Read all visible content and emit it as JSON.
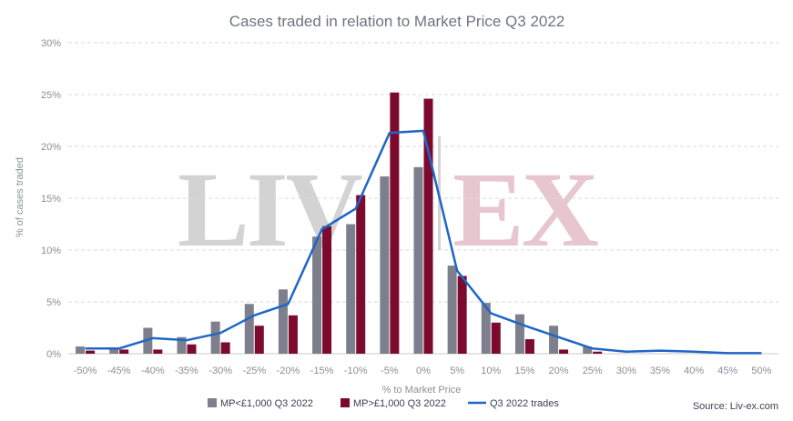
{
  "chart_data": {
    "type": "bar",
    "title": "Cases traded in relation to Market Price Q3 2022",
    "xlabel": "% to Market Price",
    "ylabel": "% of cases traded",
    "categories": [
      "-50%",
      "-45%",
      "-40%",
      "-35%",
      "-30%",
      "-25%",
      "-20%",
      "-15%",
      "-10%",
      "-5%",
      "0%",
      "5%",
      "10%",
      "15%",
      "20%",
      "25%",
      "30%",
      "35%",
      "40%",
      "45%",
      "50%"
    ],
    "y_ticks": [
      "0%",
      "5%",
      "10%",
      "15%",
      "20%",
      "25%",
      "30%"
    ],
    "ylim": [
      0,
      30
    ],
    "grid": true,
    "legend_position": "bottom",
    "series": [
      {
        "name": "MP<£1,000 Q3 2022",
        "kind": "bar",
        "color": "#7d7f8c",
        "values": [
          0.7,
          0.5,
          2.5,
          1.6,
          3.1,
          4.8,
          6.2,
          11.3,
          12.5,
          17.1,
          18.0,
          8.5,
          4.9,
          3.8,
          2.7,
          0.7,
          0.0,
          0.0,
          0.0,
          0.0,
          0.0
        ]
      },
      {
        "name": "MP>£1,000 Q3 2022",
        "kind": "bar",
        "color": "#7b0a2e",
        "values": [
          0.3,
          0.4,
          0.4,
          0.9,
          1.1,
          2.7,
          3.7,
          12.3,
          15.3,
          25.2,
          24.6,
          7.5,
          3.0,
          1.4,
          0.4,
          0.2,
          0.0,
          0.0,
          0.0,
          0.0,
          0.0
        ]
      },
      {
        "name": "Q3 2022 trades",
        "kind": "line",
        "color": "#1f66c6",
        "values": [
          0.5,
          0.5,
          1.5,
          1.3,
          2.0,
          3.7,
          4.8,
          12.0,
          14.0,
          21.3,
          21.5,
          8.0,
          3.9,
          2.7,
          1.6,
          0.5,
          0.2,
          0.3,
          0.2,
          0.05,
          0.05
        ]
      }
    ]
  },
  "watermark": {
    "left": "LIV",
    "right": "EX",
    "left_color": "#d3d3d3",
    "right_color": "#e8c6cf"
  },
  "source": "Source: Liv-ex.com"
}
